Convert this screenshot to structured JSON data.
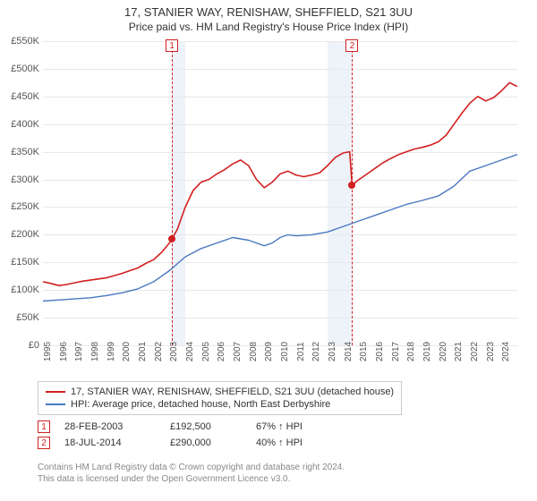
{
  "title": "17, STANIER WAY, RENISHAW, SHEFFIELD, S21 3UU",
  "subtitle": "Price paid vs. HM Land Registry's House Price Index (HPI)",
  "chart": {
    "background_color": "#ffffff",
    "grid_color": "#e8e8e8",
    "y": {
      "min": 0,
      "max": 550000,
      "step": 50000,
      "ticks": [
        "£0",
        "£50K",
        "£100K",
        "£150K",
        "£200K",
        "£250K",
        "£300K",
        "£350K",
        "£400K",
        "£450K",
        "£500K",
        "£550K"
      ],
      "label_fontsize": 11
    },
    "x": {
      "years": [
        1995,
        1996,
        1997,
        1998,
        1999,
        2000,
        2001,
        2002,
        2003,
        2004,
        2005,
        2006,
        2007,
        2008,
        2009,
        2010,
        2011,
        2012,
        2013,
        2014,
        2015,
        2016,
        2017,
        2018,
        2019,
        2020,
        2021,
        2022,
        2023,
        2024
      ],
      "min_year": 1995,
      "max_year": 2025,
      "label_fontsize": 10
    },
    "shade_color": "#eef3fa",
    "shade1": {
      "from": 2003.16,
      "to": 2004.0
    },
    "shade2": {
      "from": 2013.0,
      "to": 2014.55
    },
    "marker_line_color": "#d02020",
    "marker_box_border": "#d02020",
    "markers": [
      {
        "num": "1",
        "year": 2003.16
      },
      {
        "num": "2",
        "year": 2014.55
      }
    ],
    "dot_color": "#d02020",
    "dots": [
      {
        "year": 2003.16,
        "value": 192500
      },
      {
        "year": 2014.55,
        "value": 290000
      }
    ],
    "series": [
      {
        "name": "17, STANIER WAY, RENISHAW, SHEFFIELD, S21 3UU (detached house)",
        "color": "#d22020",
        "width": 1.6,
        "points": [
          [
            1995.0,
            115000
          ],
          [
            1995.5,
            112000
          ],
          [
            1996.0,
            108000
          ],
          [
            1996.5,
            110000
          ],
          [
            1997.0,
            113000
          ],
          [
            1997.5,
            116000
          ],
          [
            1998.0,
            118000
          ],
          [
            1998.5,
            120000
          ],
          [
            1999.0,
            122000
          ],
          [
            1999.5,
            126000
          ],
          [
            2000.0,
            130000
          ],
          [
            2000.5,
            135000
          ],
          [
            2001.0,
            140000
          ],
          [
            2001.5,
            148000
          ],
          [
            2002.0,
            155000
          ],
          [
            2002.5,
            168000
          ],
          [
            2003.0,
            185000
          ],
          [
            2003.16,
            192500
          ],
          [
            2003.5,
            210000
          ],
          [
            2004.0,
            250000
          ],
          [
            2004.5,
            280000
          ],
          [
            2005.0,
            295000
          ],
          [
            2005.5,
            300000
          ],
          [
            2006.0,
            310000
          ],
          [
            2006.5,
            318000
          ],
          [
            2007.0,
            328000
          ],
          [
            2007.5,
            335000
          ],
          [
            2008.0,
            325000
          ],
          [
            2008.5,
            300000
          ],
          [
            2009.0,
            285000
          ],
          [
            2009.5,
            295000
          ],
          [
            2010.0,
            310000
          ],
          [
            2010.5,
            315000
          ],
          [
            2011.0,
            308000
          ],
          [
            2011.5,
            305000
          ],
          [
            2012.0,
            308000
          ],
          [
            2012.5,
            312000
          ],
          [
            2013.0,
            325000
          ],
          [
            2013.5,
            340000
          ],
          [
            2014.0,
            348000
          ],
          [
            2014.4,
            350000
          ],
          [
            2014.55,
            290000
          ],
          [
            2015.0,
            300000
          ],
          [
            2015.5,
            310000
          ],
          [
            2016.0,
            320000
          ],
          [
            2016.5,
            330000
          ],
          [
            2017.0,
            338000
          ],
          [
            2017.5,
            345000
          ],
          [
            2018.0,
            350000
          ],
          [
            2018.5,
            355000
          ],
          [
            2019.0,
            358000
          ],
          [
            2019.5,
            362000
          ],
          [
            2020.0,
            368000
          ],
          [
            2020.5,
            380000
          ],
          [
            2021.0,
            400000
          ],
          [
            2021.5,
            420000
          ],
          [
            2022.0,
            438000
          ],
          [
            2022.5,
            450000
          ],
          [
            2023.0,
            442000
          ],
          [
            2023.5,
            448000
          ],
          [
            2024.0,
            460000
          ],
          [
            2024.5,
            475000
          ],
          [
            2025.0,
            468000
          ]
        ]
      },
      {
        "name": "HPI: Average price, detached house, North East Derbyshire",
        "color": "#4a78c0",
        "width": 1.4,
        "points": [
          [
            1995.0,
            80000
          ],
          [
            1996.0,
            82000
          ],
          [
            1997.0,
            84000
          ],
          [
            1998.0,
            86000
          ],
          [
            1999.0,
            90000
          ],
          [
            2000.0,
            95000
          ],
          [
            2001.0,
            102000
          ],
          [
            2002.0,
            115000
          ],
          [
            2003.0,
            135000
          ],
          [
            2004.0,
            160000
          ],
          [
            2005.0,
            175000
          ],
          [
            2006.0,
            185000
          ],
          [
            2007.0,
            195000
          ],
          [
            2008.0,
            190000
          ],
          [
            2009.0,
            180000
          ],
          [
            2009.5,
            185000
          ],
          [
            2010.0,
            195000
          ],
          [
            2010.5,
            200000
          ],
          [
            2011.0,
            198000
          ],
          [
            2012.0,
            200000
          ],
          [
            2013.0,
            205000
          ],
          [
            2014.0,
            215000
          ],
          [
            2015.0,
            225000
          ],
          [
            2016.0,
            235000
          ],
          [
            2017.0,
            245000
          ],
          [
            2018.0,
            255000
          ],
          [
            2019.0,
            262000
          ],
          [
            2020.0,
            270000
          ],
          [
            2021.0,
            288000
          ],
          [
            2022.0,
            315000
          ],
          [
            2023.0,
            325000
          ],
          [
            2024.0,
            335000
          ],
          [
            2025.0,
            345000
          ]
        ]
      }
    ]
  },
  "legend": {
    "border_color": "#cccccc",
    "items": [
      {
        "color": "#d22020",
        "label": "17, STANIER WAY, RENISHAW, SHEFFIELD, S21 3UU (detached house)"
      },
      {
        "color": "#4a78c0",
        "label": "HPI: Average price, detached house, North East Derbyshire"
      }
    ]
  },
  "transactions": [
    {
      "num": "1",
      "date": "28-FEB-2003",
      "price": "£192,500",
      "delta": "67% ↑ HPI"
    },
    {
      "num": "2",
      "date": "18-JUL-2014",
      "price": "£290,000",
      "delta": "40% ↑ HPI"
    }
  ],
  "footer_line1": "Contains HM Land Registry data © Crown copyright and database right 2024.",
  "footer_line2": "This data is licensed under the Open Government Licence v3.0."
}
